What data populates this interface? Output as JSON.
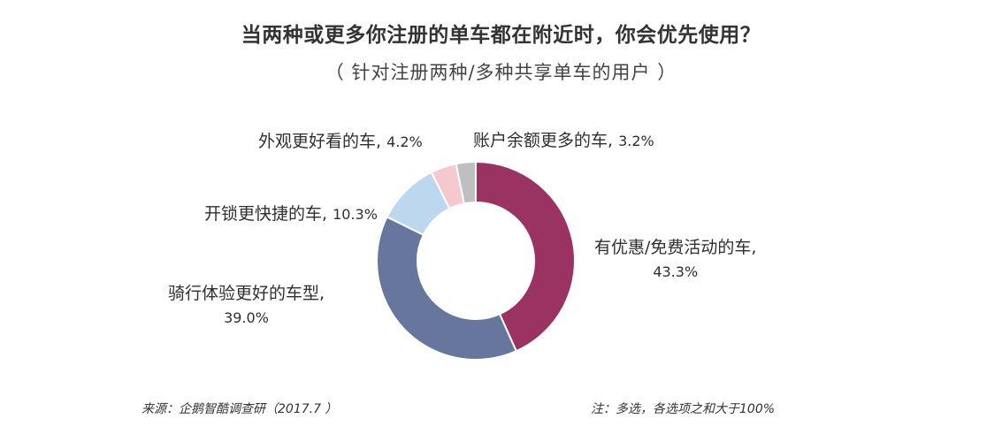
{
  "title": "当两种或更多你注册的单车都在附近时，你会优先使用？",
  "subtitle": "（ 针对注册两种/多种共享单车的用户 ）",
  "chart_data": {
    "type": "pie",
    "title": "当两种或更多你注册的单车都在附近时，你会优先使用？",
    "subtitle": "（ 针对注册两种/多种共享单车的用户 ）",
    "categories": [
      "有优惠/免费活动的车",
      "骑行体验更好的车型",
      "开锁更快捷的车",
      "外观更好看的车",
      "账户余额更多的车"
    ],
    "values": [
      43.3,
      39.0,
      10.3,
      4.2,
      3.2
    ],
    "value_labels": [
      "43.3%",
      "39.0%",
      "10.3%",
      "4.2%",
      "3.2%"
    ],
    "colors": [
      "#9b3362",
      "#66769c",
      "#bdd7ee",
      "#f5c8cd",
      "#bfbfbf"
    ],
    "donut": true,
    "start": "top",
    "direction": "clockwise",
    "legend": "none"
  },
  "labels": {
    "youhui_name": "有优惠/免费活动的车,",
    "youhui_pct": "43.3%",
    "qixing_name": "骑行体验更好的车型,",
    "qixing_pct": "39.0%",
    "kaisuo": "开锁更快捷的车,",
    "kaisuo_pct": "10.3%",
    "waiguan": "外观更好看的车,",
    "waiguan_pct": "4.2%",
    "zhanghu": "账户余额更多的车,",
    "zhanghu_pct": "3.2%"
  },
  "footer": {
    "source": "来源：企鹅智酷调查研（2017.7 ）",
    "note": "注：多选，各选项之和大于100%"
  }
}
